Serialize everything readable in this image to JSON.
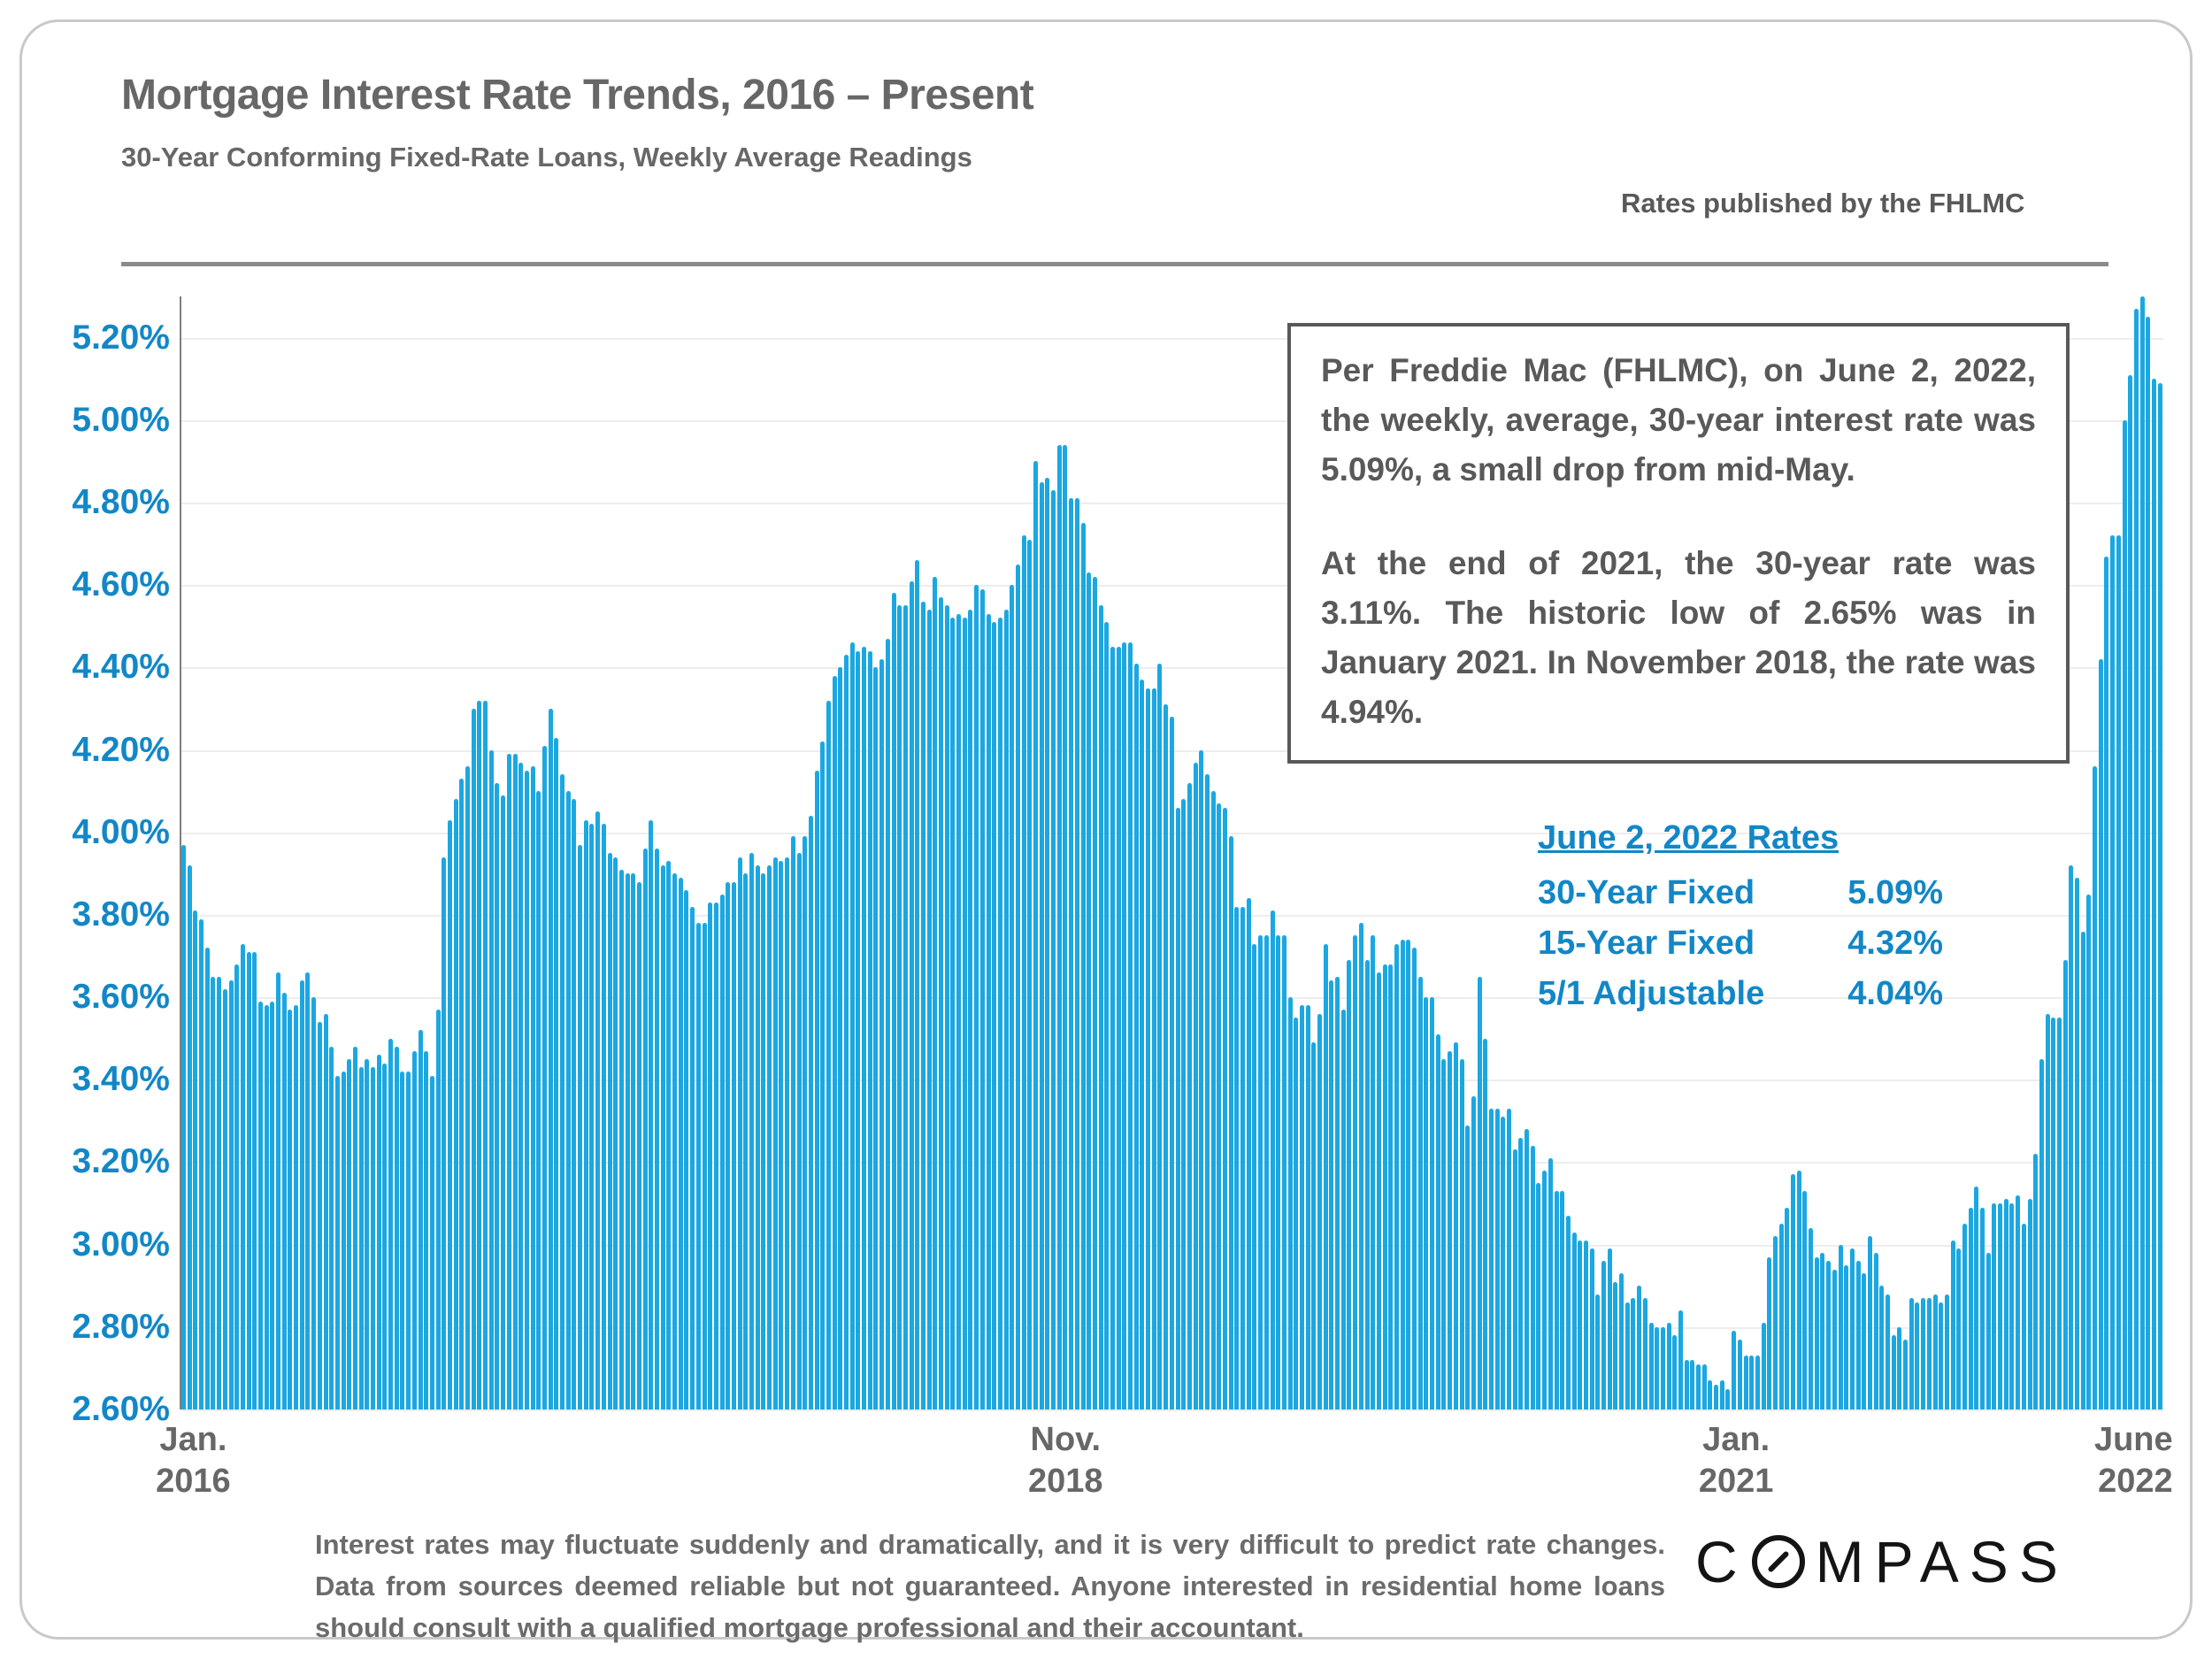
{
  "header": {
    "title": "Mortgage Interest Rate Trends, 2016 – Present",
    "subtitle": "30-Year Conforming Fixed-Rate Loans, Weekly Average Readings",
    "source_note": "Rates published by the FHLMC"
  },
  "chart_data": {
    "type": "bar",
    "title": "30-Year Conforming Fixed-Rate Loans, Weekly Average Readings",
    "unit": "percent",
    "frequency": "weekly",
    "x_start": "Jan. 2016",
    "x_end": "June 2, 2022",
    "grid": true,
    "ylim": [
      2.6,
      5.3
    ],
    "y_ticks": [
      {
        "v": 5.2,
        "label": "5.20%"
      },
      {
        "v": 5.0,
        "label": "5.00%"
      },
      {
        "v": 4.8,
        "label": "4.80%"
      },
      {
        "v": 4.6,
        "label": "4.60%"
      },
      {
        "v": 4.4,
        "label": "4.40%"
      },
      {
        "v": 4.2,
        "label": "4.20%"
      },
      {
        "v": 4.0,
        "label": "4.00%"
      },
      {
        "v": 3.8,
        "label": "3.80%"
      },
      {
        "v": 3.6,
        "label": "3.60%"
      },
      {
        "v": 3.4,
        "label": "3.40%"
      },
      {
        "v": 3.2,
        "label": "3.20%"
      },
      {
        "v": 3.0,
        "label": "3.00%"
      },
      {
        "v": 2.8,
        "label": "2.80%"
      },
      {
        "v": 2.6,
        "label": "2.60%"
      }
    ],
    "x_ticks": [
      {
        "line1": "Jan.",
        "line2": "2016",
        "index": 2,
        "align": "center"
      },
      {
        "line1": "Nov.",
        "line2": "2018",
        "index": 149,
        "align": "center"
      },
      {
        "line1": "Jan.",
        "line2": "2021",
        "index": 262,
        "align": "center"
      },
      {
        "line1": "June",
        "line2": "2022",
        "index": 334,
        "align": "right"
      }
    ],
    "values": [
      3.97,
      3.92,
      3.81,
      3.79,
      3.72,
      3.65,
      3.65,
      3.62,
      3.64,
      3.68,
      3.73,
      3.71,
      3.71,
      3.59,
      3.58,
      3.59,
      3.66,
      3.61,
      3.57,
      3.58,
      3.64,
      3.66,
      3.6,
      3.54,
      3.56,
      3.48,
      3.41,
      3.42,
      3.45,
      3.48,
      3.43,
      3.45,
      3.43,
      3.46,
      3.44,
      3.5,
      3.48,
      3.42,
      3.42,
      3.47,
      3.52,
      3.47,
      3.41,
      3.57,
      3.94,
      4.03,
      4.08,
      4.13,
      4.16,
      4.3,
      4.32,
      4.32,
      4.2,
      4.12,
      4.09,
      4.19,
      4.19,
      4.17,
      4.15,
      4.16,
      4.1,
      4.21,
      4.3,
      4.23,
      4.14,
      4.1,
      4.08,
      3.97,
      4.03,
      4.02,
      4.05,
      4.02,
      3.95,
      3.94,
      3.91,
      3.9,
      3.9,
      3.88,
      3.96,
      4.03,
      3.96,
      3.92,
      3.93,
      3.9,
      3.89,
      3.86,
      3.82,
      3.78,
      3.78,
      3.83,
      3.83,
      3.85,
      3.88,
      3.88,
      3.94,
      3.9,
      3.95,
      3.92,
      3.9,
      3.92,
      3.94,
      3.93,
      3.94,
      3.99,
      3.95,
      3.99,
      4.04,
      4.15,
      4.22,
      4.32,
      4.38,
      4.4,
      4.43,
      4.46,
      4.44,
      4.45,
      4.44,
      4.4,
      4.42,
      4.47,
      4.58,
      4.55,
      4.55,
      4.61,
      4.66,
      4.56,
      4.54,
      4.62,
      4.57,
      4.55,
      4.52,
      4.53,
      4.52,
      4.54,
      4.6,
      4.59,
      4.53,
      4.51,
      4.52,
      4.54,
      4.6,
      4.65,
      4.72,
      4.71,
      4.9,
      4.85,
      4.86,
      4.83,
      4.94,
      4.94,
      4.81,
      4.81,
      4.75,
      4.63,
      4.62,
      4.55,
      4.51,
      4.45,
      4.45,
      4.46,
      4.46,
      4.41,
      4.37,
      4.35,
      4.35,
      4.41,
      4.31,
      4.28,
      4.06,
      4.08,
      4.12,
      4.17,
      4.2,
      4.14,
      4.1,
      4.07,
      4.06,
      3.99,
      3.82,
      3.82,
      3.84,
      3.73,
      3.75,
      3.75,
      3.81,
      3.75,
      3.75,
      3.6,
      3.55,
      3.58,
      3.58,
      3.49,
      3.56,
      3.73,
      3.64,
      3.65,
      3.57,
      3.69,
      3.75,
      3.78,
      3.69,
      3.75,
      3.66,
      3.68,
      3.68,
      3.73,
      3.74,
      3.74,
      3.72,
      3.65,
      3.6,
      3.6,
      3.51,
      3.45,
      3.47,
      3.49,
      3.45,
      3.29,
      3.36,
      3.65,
      3.5,
      3.33,
      3.33,
      3.31,
      3.33,
      3.23,
      3.26,
      3.28,
      3.24,
      3.15,
      3.18,
      3.21,
      3.13,
      3.13,
      3.07,
      3.03,
      3.01,
      3.01,
      2.99,
      2.88,
      2.96,
      2.99,
      2.91,
      2.93,
      2.86,
      2.87,
      2.9,
      2.87,
      2.81,
      2.8,
      2.8,
      2.81,
      2.78,
      2.84,
      2.72,
      2.72,
      2.71,
      2.71,
      2.67,
      2.66,
      2.67,
      2.65,
      2.79,
      2.77,
      2.73,
      2.73,
      2.73,
      2.81,
      2.97,
      3.02,
      3.05,
      3.09,
      3.17,
      3.18,
      3.13,
      3.04,
      2.97,
      2.98,
      2.96,
      2.94,
      3.0,
      2.95,
      2.99,
      2.96,
      2.93,
      3.02,
      2.98,
      2.9,
      2.88,
      2.78,
      2.8,
      2.77,
      2.87,
      2.86,
      2.87,
      2.87,
      2.88,
      2.86,
      2.88,
      3.01,
      2.99,
      3.05,
      3.09,
      3.14,
      3.09,
      2.98,
      3.1,
      3.1,
      3.11,
      3.1,
      3.12,
      3.05,
      3.11,
      3.22,
      3.45,
      3.56,
      3.55,
      3.55,
      3.69,
      3.92,
      3.89,
      3.76,
      3.85,
      4.16,
      4.42,
      4.67,
      4.72,
      4.72,
      5.0,
      5.11,
      5.27,
      5.3,
      5.25,
      5.1,
      5.09
    ]
  },
  "info_box": {
    "paragraph1": "Per Freddie Mac (FHLMC), on June 2, 2022, the weekly, average, 30-year interest rate was 5.09%, a small drop from mid-May.",
    "paragraph2": "At the end of 2021, the 30-year rate was 3.11%. The historic low of 2.65% was in January 2021. In November 2018, the rate was 4.94%."
  },
  "rates_panel": {
    "title": "June 2, 2022 Rates",
    "rows": [
      {
        "label": "30-Year Fixed",
        "value": "5.09%"
      },
      {
        "label": "15-Year Fixed",
        "value": "4.32%"
      },
      {
        "label": "5/1 Adjustable",
        "value": "4.04%"
      }
    ]
  },
  "footer": {
    "disclaimer": "Interest rates may fluctuate suddenly and dramatically, and it is very difficult to predict rate changes. Data from sources deemed reliable but not guaranteed. Anyone interested in residential home loans should consult with a qualified mortgage professional and their accountant."
  },
  "logo": {
    "prefix": "C",
    "suffix": "MPASS",
    "icon": "compass-slashed-o-icon"
  },
  "colors": {
    "bar": "#1BA7E1",
    "blue_text": "#1287C7",
    "title_gray": "#676767",
    "dark_gray": "#595959",
    "gridline": "#EDEDED",
    "axis_line": "#7F7F7F",
    "divider": "#8A8A8A",
    "frame_border": "#C9C9C9",
    "logo_black": "#141414"
  }
}
